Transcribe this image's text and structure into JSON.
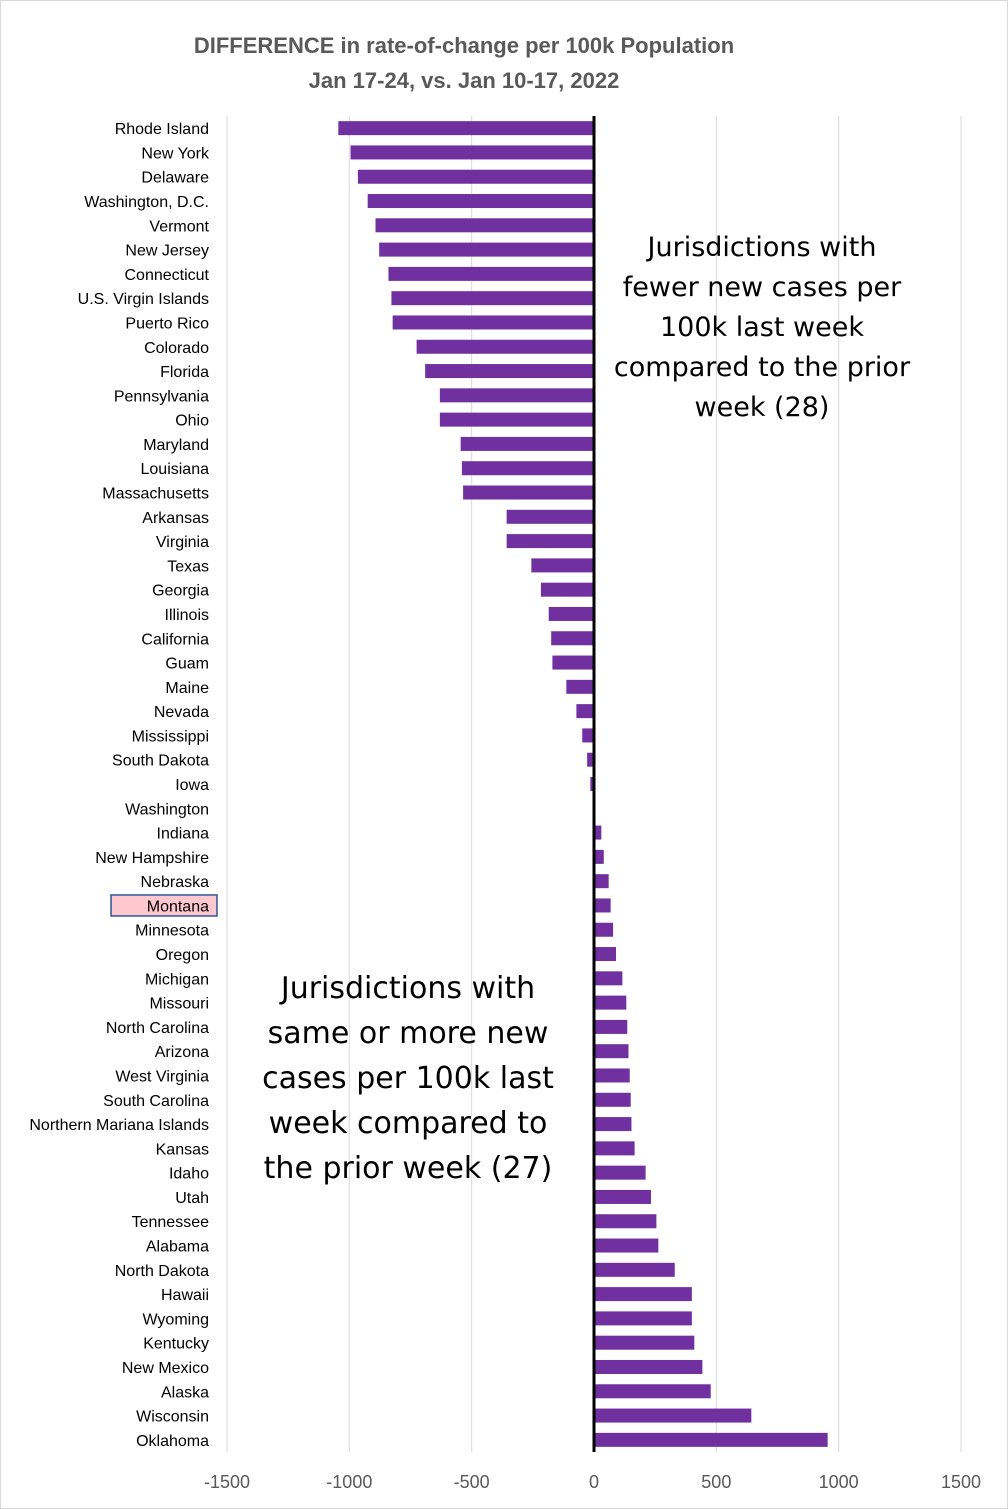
{
  "chart_data": {
    "type": "bar",
    "orientation": "horizontal",
    "title": "DIFFERENCE in rate-of-change per 100k Population",
    "subtitle": "Jan 17-24, vs. Jan 10-17, 2022",
    "xlabel": "",
    "ylabel": "",
    "xlim": [
      -1500,
      1500
    ],
    "xticks": [
      "-1500",
      "-1000",
      "-500",
      "0",
      "500",
      "1000",
      "1500"
    ],
    "grid": "vertical",
    "bar_color": "#7030a0",
    "highlight_color": "#ffc7ce",
    "highlight_category": "Montana",
    "categories": [
      "Rhode Island",
      "New York",
      "Delaware",
      "Washington, D.C.",
      "Vermont",
      "New Jersey",
      "Connecticut",
      "U.S. Virgin Islands",
      "Puerto Rico",
      "Colorado",
      "Florida",
      "Pennsylvania",
      "Ohio",
      "Maryland",
      "Louisiana",
      "Massachusetts",
      "Arkansas",
      "Virginia",
      "Texas",
      "Georgia",
      "Illinois",
      "California",
      "Guam",
      "Maine",
      "Nevada",
      "Mississippi",
      "South Dakota",
      "Iowa",
      "Washington",
      "Indiana",
      "New Hampshire",
      "Nebraska",
      "Montana",
      "Minnesota",
      "Oregon",
      "Michigan",
      "Missouri",
      "North Carolina",
      "Arizona",
      "West Virginia",
      "South Carolina",
      "Northern Mariana Islands",
      "Kansas",
      "Idaho",
      "Utah",
      "Tennessee",
      "Alabama",
      "North Dakota",
      "Hawaii",
      "Wyoming",
      "Kentucky",
      "New Mexico",
      "Alaska",
      "Wisconsin",
      "Oklahoma"
    ],
    "values": [
      -1045,
      -995,
      -965,
      -925,
      -893,
      -878,
      -840,
      -828,
      -823,
      -725,
      -690,
      -630,
      -630,
      -545,
      -540,
      -535,
      -357,
      -357,
      -256,
      -217,
      -185,
      -175,
      -170,
      -113,
      -72,
      -48,
      -28,
      -15,
      0,
      30,
      40,
      60,
      68,
      78,
      90,
      116,
      132,
      136,
      141,
      146,
      150,
      153,
      166,
      211,
      233,
      255,
      263,
      330,
      400,
      400,
      410,
      443,
      477,
      643,
      955
    ]
  },
  "annotations": {
    "fewer": [
      "Jurisdictions with",
      "fewer new cases per",
      "100k last week",
      "compared to the prior",
      "week (28)"
    ],
    "more": [
      "Jurisdictions with",
      "same or more new",
      "cases per 100k last",
      "week compared to",
      "the prior week (27)"
    ]
  }
}
